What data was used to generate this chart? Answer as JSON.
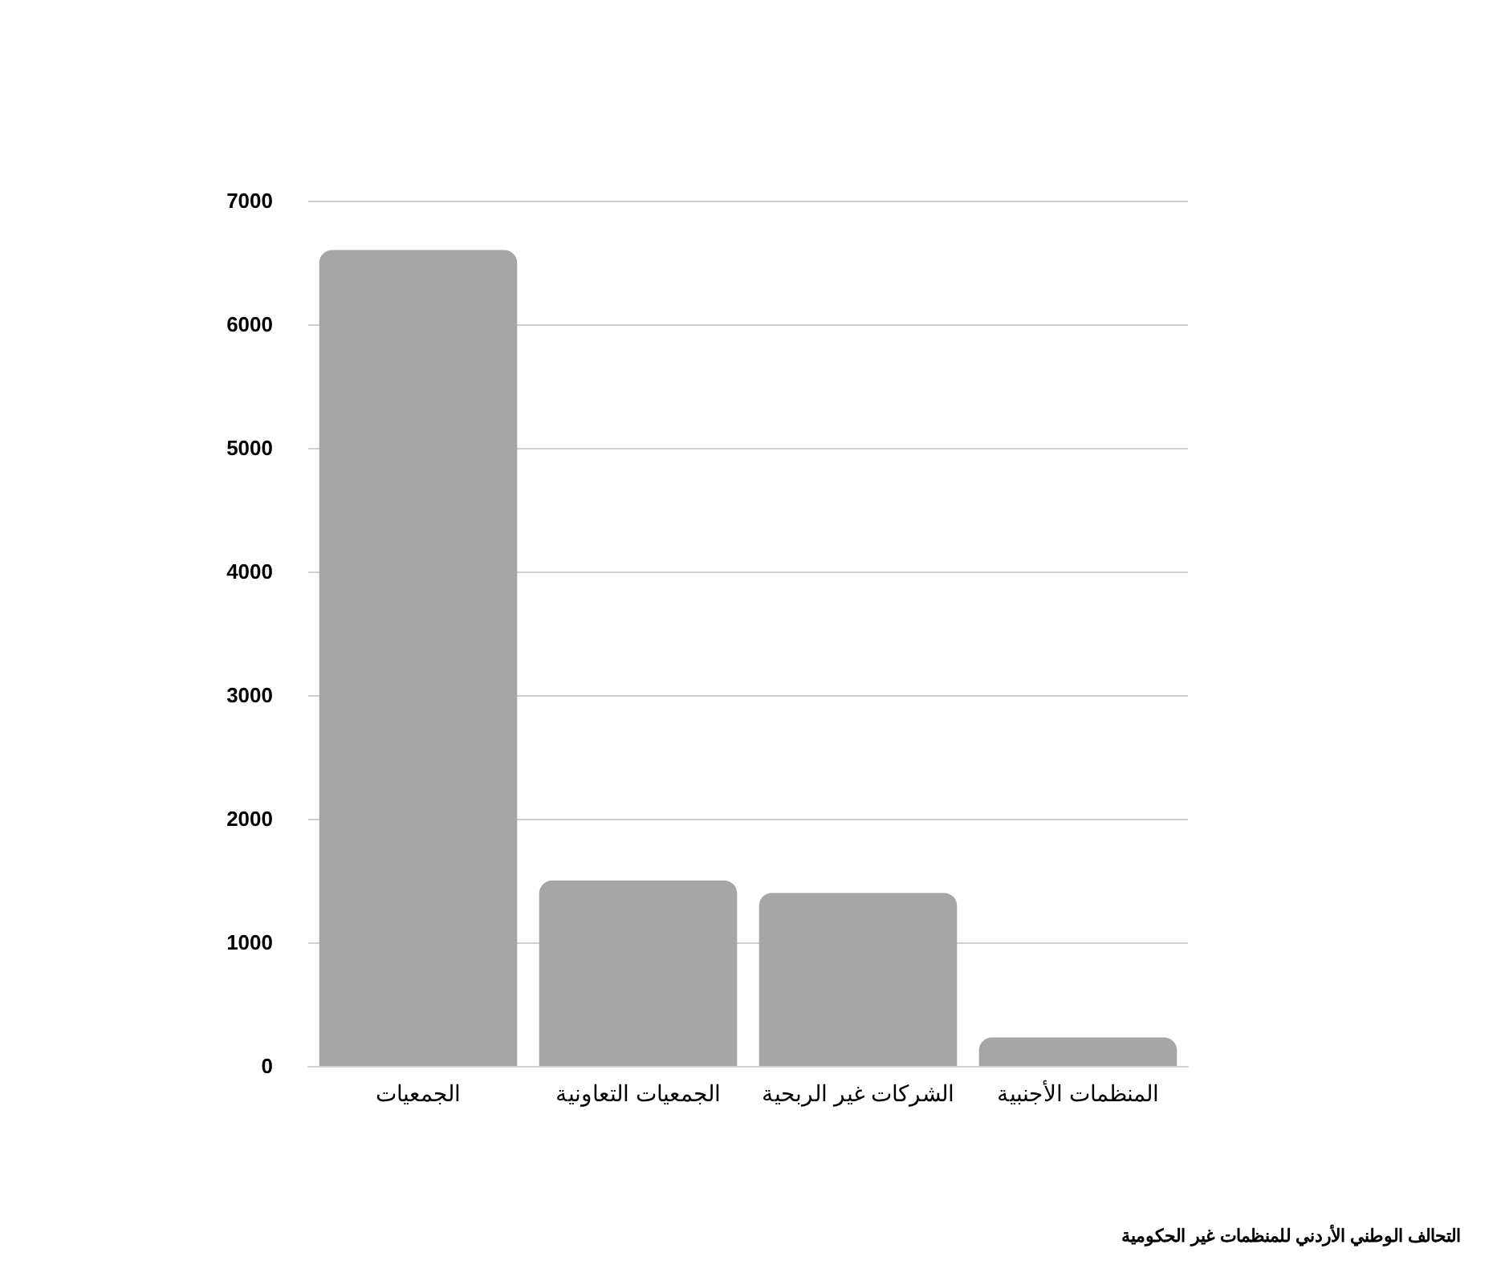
{
  "chart_data": {
    "type": "bar",
    "categories": [
      "الجمعيات",
      "الجمعيات التعاونية",
      "الشركات غير الربحية",
      "المنظمات الأجنبية"
    ],
    "values": [
      6600,
      1500,
      1400,
      230
    ],
    "color": "#a6a6a6",
    "ylim": [
      0,
      7000
    ],
    "yticks": [
      0,
      1000,
      2000,
      3000,
      4000,
      5000,
      6000,
      7000
    ],
    "grid": "y",
    "annotations": [
      "التحالف الوطني الأردني للمنظمات غير الحكومية"
    ]
  }
}
